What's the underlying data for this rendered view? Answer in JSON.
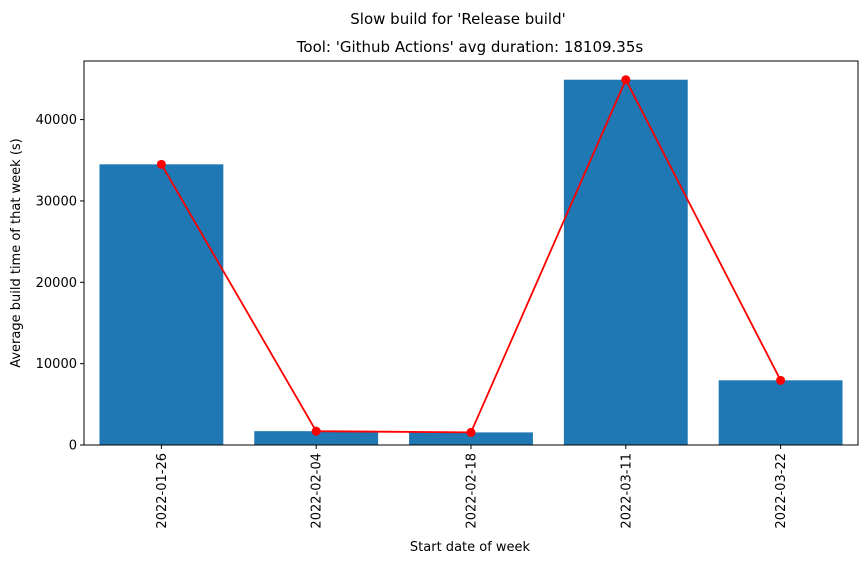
{
  "chart_data": {
    "type": "bar",
    "suptitle": "Slow build for 'Release build'",
    "title": "Tool: 'Github Actions' avg duration: 18109.35s",
    "xlabel": "Start date of week",
    "ylabel": "Average build time of that week (s)",
    "categories": [
      "2022-01-26",
      "2022-02-04",
      "2022-02-18",
      "2022-03-11",
      "2022-03-22"
    ],
    "values": [
      34500,
      1700,
      1550,
      44900,
      7950
    ],
    "line_values": [
      34500,
      1700,
      1550,
      44900,
      7950
    ],
    "ylim": [
      0,
      47200
    ],
    "yticks": [
      0,
      10000,
      20000,
      30000,
      40000
    ],
    "ytick_labels": [
      "0",
      "10000",
      "20000",
      "30000",
      "40000"
    ],
    "bar_color": "#1f77b4",
    "line_color": "#ff0000",
    "grid": false,
    "x_tick_rotation": "vertical"
  }
}
